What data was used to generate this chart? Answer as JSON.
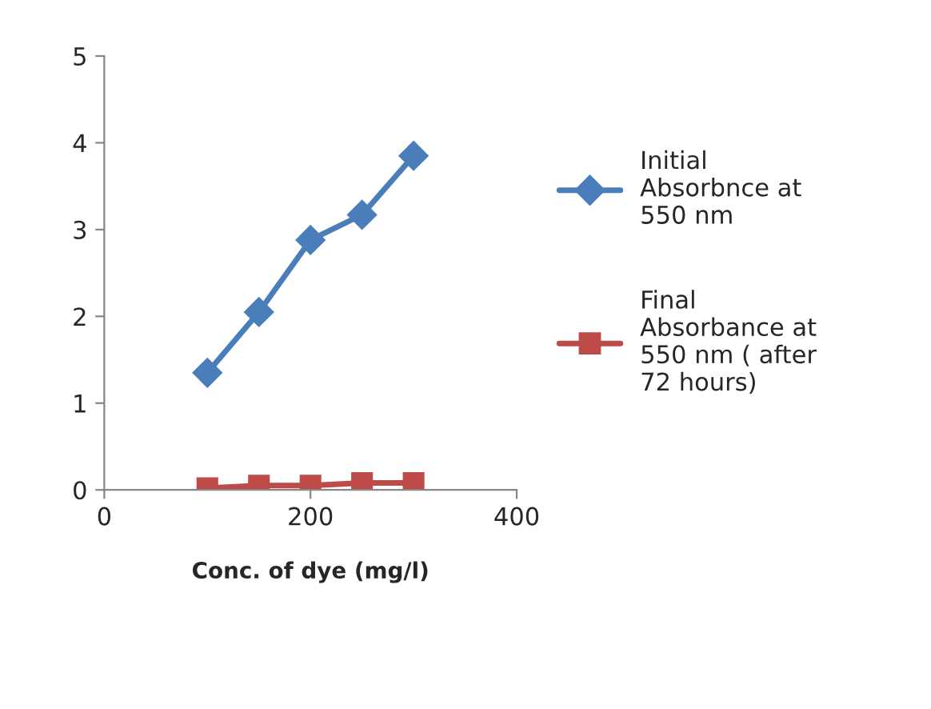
{
  "chart_data": {
    "type": "line",
    "xlabel": "Conc. of dye (mg/l)",
    "x": [
      100,
      150,
      200,
      250,
      300
    ],
    "series": [
      {
        "name": "Initial Absorbnce at 550 nm",
        "color": "#4a7ebb",
        "marker": "diamond",
        "values": [
          1.35,
          2.05,
          2.88,
          3.17,
          3.85
        ]
      },
      {
        "name": "Final Absorbance at 550 nm ( after 72 hours)",
        "color": "#be4b48",
        "marker": "square",
        "values": [
          0.02,
          0.05,
          0.05,
          0.08,
          0.08
        ]
      }
    ],
    "xlim": [
      0,
      400
    ],
    "xticks": [
      0,
      200,
      400
    ],
    "ylim": [
      0,
      5
    ],
    "yticks": [
      0,
      1,
      2,
      3,
      4,
      5
    ],
    "grid": false,
    "legend": "right",
    "line_style": "solid"
  }
}
